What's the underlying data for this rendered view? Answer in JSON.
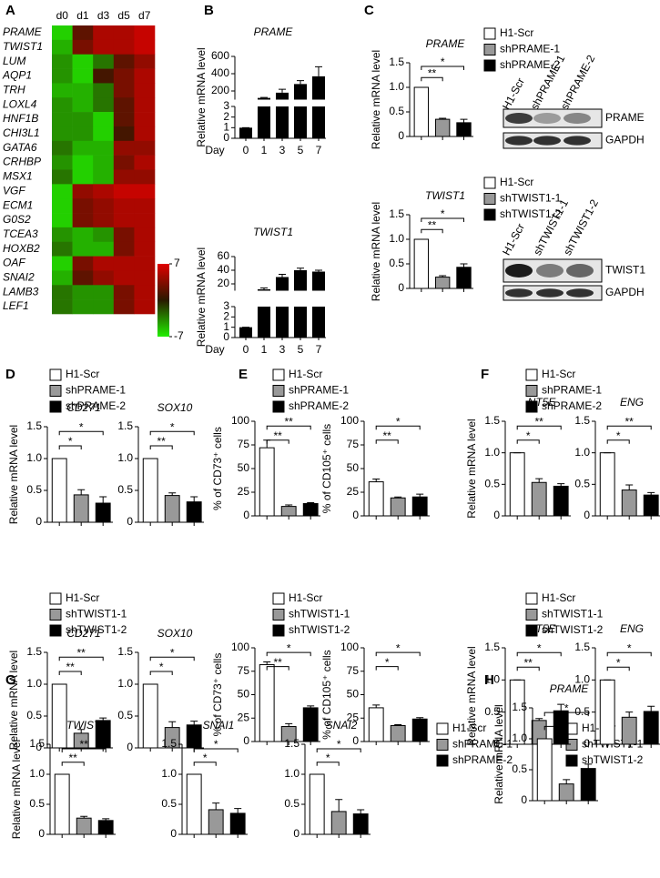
{
  "panel_labels": [
    "A",
    "B",
    "C",
    "D",
    "E",
    "F",
    "G",
    "H"
  ],
  "legends": [
    {
      "names": [
        "H1-Scr",
        "shPRAME-1",
        "shPRAME-2"
      ],
      "colors": [
        "#ffffff",
        "#999999",
        "#000000"
      ]
    },
    {
      "names": [
        "H1-Scr",
        "shTWIST1-1",
        "shTWIST1-2"
      ],
      "colors": [
        "#ffffff",
        "#999999",
        "#000000"
      ]
    },
    {
      "names": [
        "H1-Scr",
        "shPRAME-1",
        "shPRAME-2"
      ],
      "colors": [
        "#ffffff",
        "#999999",
        "#000000"
      ]
    },
    {
      "names": [
        "H1-Scr",
        "shTWIST1-1",
        "shTWIST1-2"
      ],
      "colors": [
        "#ffffff",
        "#999999",
        "#000000"
      ]
    },
    {
      "names": [
        "H1-Scr",
        "shPRAME-1",
        "shPRAME-2"
      ],
      "colors": [
        "#ffffff",
        "#999999",
        "#000000"
      ]
    },
    {
      "names": [
        "H1-Scr",
        "shTWIST1-1",
        "shTWIST1-2"
      ],
      "colors": [
        "#ffffff",
        "#999999",
        "#000000"
      ]
    },
    {
      "names": [
        "H1-Scr",
        "shPRAME-1",
        "shPRAME-2"
      ],
      "colors": [
        "#ffffff",
        "#999999",
        "#000000"
      ]
    },
    {
      "names": [
        "H1-Scr",
        "shTWIST1-1",
        "shTWIST1-2"
      ],
      "colors": [
        "#ffffff",
        "#999999",
        "#000000"
      ]
    },
    {
      "names": [
        "H1-Scr",
        "shPRAME-1",
        "shPRAME-2"
      ],
      "colors": [
        "#ffffff",
        "#999999",
        "#000000"
      ]
    },
    {
      "names": [
        "H1-Scr",
        "shTWIST1-1",
        "shTWIST1-2"
      ],
      "colors": [
        "#ffffff",
        "#999999",
        "#000000"
      ]
    }
  ],
  "blots": [
    {
      "columns": [
        "H1-Scr",
        "shPRAME-1",
        "shPRAME-2"
      ],
      "bands": [
        "PRAME",
        "GAPDH"
      ]
    },
    {
      "columns": [
        "H1-Scr",
        "shTWIST1-1",
        "shTWIST1-2"
      ],
      "bands": [
        "TWIST1",
        "GAPDH"
      ]
    }
  ],
  "chart_data": [
    {
      "type": "heatmap",
      "columns": [
        "d0",
        "d1",
        "d3",
        "d5",
        "d7"
      ],
      "rows": [
        "PRAME",
        "TWIST1",
        "LUM",
        "AQP1",
        "TRH",
        "LOXL4",
        "HNF1B",
        "CHI3L1",
        "GATA6",
        "CRHBP",
        "MSX1",
        "VGF",
        "ECM1",
        "G0S2",
        "TCEA3",
        "HOXB2",
        "OAF",
        "SNAI2",
        "LAMB3",
        "LEF1"
      ],
      "values": [
        [
          -6,
          2,
          5,
          5,
          6
        ],
        [
          -5,
          3,
          5,
          5,
          6
        ],
        [
          -4,
          -6,
          -3,
          2,
          4
        ],
        [
          -4,
          -6,
          1,
          3,
          5
        ],
        [
          -5,
          -5,
          -3,
          3,
          5
        ],
        [
          -4,
          -5,
          -3,
          2,
          5
        ],
        [
          -4,
          -4,
          -6,
          2,
          5
        ],
        [
          -4,
          -4,
          -6,
          1,
          5
        ],
        [
          -3,
          -5,
          -5,
          4,
          4
        ],
        [
          -4,
          -6,
          -5,
          3,
          5
        ],
        [
          -3,
          -6,
          -5,
          4,
          4
        ],
        [
          -6,
          4,
          5,
          6,
          6
        ],
        [
          -6,
          3,
          4,
          5,
          5
        ],
        [
          -6,
          3,
          4,
          5,
          5
        ],
        [
          -4,
          -5,
          -4,
          3,
          5
        ],
        [
          -3,
          -5,
          -5,
          3,
          5
        ],
        [
          -6,
          3,
          5,
          5,
          5
        ],
        [
          -5,
          2,
          4,
          5,
          5
        ],
        [
          -3,
          -4,
          -4,
          3,
          5
        ],
        [
          -3,
          -4,
          -4,
          3,
          5
        ]
      ],
      "clim": [
        -7,
        7
      ],
      "cticks": [
        7,
        -7
      ],
      "colormap": [
        "#22ee00",
        "#2a1a00",
        "#e00000"
      ]
    },
    {
      "type": "broken_bar",
      "title": "PRAME",
      "y_label": "Relative mRNA level",
      "x_label": "Day",
      "categories": [
        "0",
        "1",
        "3",
        "5",
        "7"
      ],
      "values": [
        1,
        120,
        180,
        280,
        370
      ],
      "errors": [
        0,
        5,
        40,
        40,
        110
      ],
      "color": "#000000",
      "ylim_lower": [
        0,
        3
      ],
      "yticks_lower": [
        0,
        1,
        2,
        3
      ],
      "ylim_upper": [
        100,
        600
      ],
      "yticks_upper": [
        200,
        400,
        600
      ]
    },
    {
      "type": "broken_bar",
      "title": "TWIST1",
      "y_label": "Relative mRNA level",
      "x_label": "Day",
      "categories": [
        "0",
        "1",
        "3",
        "5",
        "7"
      ],
      "values": [
        1,
        12,
        30,
        40,
        38
      ],
      "errors": [
        0,
        2,
        4,
        3,
        2
      ],
      "color": "#000000",
      "ylim_lower": [
        0,
        3
      ],
      "yticks_lower": [
        0,
        1,
        2,
        3
      ],
      "ylim_upper": [
        10,
        60
      ],
      "yticks_upper": [
        20,
        40,
        60
      ]
    },
    {
      "type": "bar",
      "title": "PRAME",
      "y_label": "Relative mRNA level",
      "categories": [
        null,
        null,
        null
      ],
      "values": [
        1,
        0.35,
        0.28
      ],
      "errors": [
        0,
        0.02,
        0.07
      ],
      "colors": [
        "#ffffff",
        "#999999",
        "#000000"
      ],
      "ylim": [
        0,
        1.5
      ],
      "yticks": [
        0,
        0.5,
        {
          "value": 1,
          "label": "1.0"
        },
        1.5
      ],
      "significance": [
        "**",
        "*"
      ]
    },
    {
      "type": "bar",
      "title": "TWIST1",
      "y_label": "Relative mRNA level",
      "categories": [
        null,
        null,
        null
      ],
      "values": [
        1,
        0.23,
        0.43
      ],
      "errors": [
        0,
        0.03,
        0.07
      ],
      "colors": [
        "#ffffff",
        "#999999",
        "#000000"
      ],
      "ylim": [
        0,
        1.5
      ],
      "yticks": [
        0,
        0.5,
        {
          "value": 1,
          "label": "1.0"
        },
        1.5
      ],
      "significance": [
        "**",
        "*"
      ]
    },
    {
      "type": "bar",
      "title": "CD271",
      "y_label": "Relative mRNA level",
      "categories": [
        null,
        null,
        null
      ],
      "values": [
        1,
        0.43,
        0.3
      ],
      "errors": [
        0,
        0.08,
        0.1
      ],
      "colors": [
        "#ffffff",
        "#999999",
        "#000000"
      ],
      "ylim": [
        0,
        1.5
      ],
      "yticks": [
        0,
        0.5,
        {
          "value": 1,
          "label": "1.0"
        },
        1.5
      ],
      "significance": [
        "*",
        "*"
      ]
    },
    {
      "type": "bar",
      "title": "SOX10",
      "categories": [
        null,
        null,
        null
      ],
      "values": [
        1,
        0.42,
        0.32
      ],
      "errors": [
        0,
        0.04,
        0.08
      ],
      "colors": [
        "#ffffff",
        "#999999",
        "#000000"
      ],
      "ylim": [
        0,
        1.5
      ],
      "yticks": [
        0,
        0.5,
        {
          "value": 1,
          "label": "1.0"
        },
        1.5
      ],
      "significance": [
        "**",
        "*"
      ]
    },
    {
      "type": "bar",
      "title": "CD271",
      "y_label": "Relative mRNA level",
      "categories": [
        null,
        null,
        null
      ],
      "values": [
        1,
        0.23,
        0.43
      ],
      "errors": [
        0,
        0.06,
        0.04
      ],
      "colors": [
        "#ffffff",
        "#999999",
        "#000000"
      ],
      "ylim": [
        0,
        1.5
      ],
      "yticks": [
        0,
        0.5,
        {
          "value": 1,
          "label": "1.0"
        },
        1.5
      ],
      "significance": [
        "**",
        "**"
      ]
    },
    {
      "type": "bar",
      "title": "SOX10",
      "categories": [
        null,
        null,
        null
      ],
      "values": [
        1,
        0.32,
        0.36
      ],
      "errors": [
        0,
        0.09,
        0.06
      ],
      "colors": [
        "#ffffff",
        "#999999",
        "#000000"
      ],
      "ylim": [
        0,
        1.5
      ],
      "yticks": [
        0,
        0.5,
        {
          "value": 1,
          "label": "1.0"
        },
        1.5
      ],
      "significance": [
        "*",
        "*"
      ]
    },
    {
      "type": "bar",
      "y_label": "% of CD73⁺ cells",
      "categories": [
        null,
        null,
        null
      ],
      "values": [
        72,
        10,
        13
      ],
      "errors": [
        8,
        1.5,
        1
      ],
      "colors": [
        "#ffffff",
        "#999999",
        "#000000"
      ],
      "ylim": [
        0,
        100
      ],
      "yticks": [
        0,
        25,
        50,
        75,
        100
      ],
      "significance": [
        "**",
        "**"
      ]
    },
    {
      "type": "bar",
      "y_label": "% of CD105⁺ cells",
      "categories": [
        null,
        null,
        null
      ],
      "values": [
        36,
        19,
        20
      ],
      "errors": [
        3,
        1,
        3
      ],
      "colors": [
        "#ffffff",
        "#999999",
        "#000000"
      ],
      "ylim": [
        0,
        100
      ],
      "yticks": [
        0,
        25,
        50,
        75,
        100
      ],
      "significance": [
        "**",
        "*"
      ]
    },
    {
      "type": "bar",
      "y_label": "% of CD73⁺ cells",
      "categories": [
        null,
        null,
        null
      ],
      "values": [
        82,
        16,
        36
      ],
      "errors": [
        3,
        3,
        2
      ],
      "colors": [
        "#ffffff",
        "#999999",
        "#000000"
      ],
      "ylim": [
        0,
        100
      ],
      "yticks": [
        0,
        25,
        50,
        75,
        100
      ],
      "significance": [
        "**",
        "*"
      ]
    },
    {
      "type": "bar",
      "y_label": "% of CD105⁺ cells",
      "categories": [
        null,
        null,
        null
      ],
      "values": [
        36,
        17,
        24
      ],
      "errors": [
        3,
        1,
        1.5
      ],
      "colors": [
        "#ffffff",
        "#999999",
        "#000000"
      ],
      "ylim": [
        0,
        100
      ],
      "yticks": [
        0,
        25,
        50,
        75,
        100
      ],
      "significance": [
        "*",
        "*"
      ]
    },
    {
      "type": "bar",
      "title": "NT5E",
      "y_label": "Relative mRNA level",
      "categories": [
        null,
        null,
        null
      ],
      "values": [
        1,
        0.53,
        0.47
      ],
      "errors": [
        0,
        0.06,
        0.04
      ],
      "colors": [
        "#ffffff",
        "#999999",
        "#000000"
      ],
      "ylim": [
        0,
        1.5
      ],
      "yticks": [
        0,
        0.5,
        {
          "value": 1,
          "label": "1.0"
        },
        1.5
      ],
      "significance": [
        "*",
        "**"
      ]
    },
    {
      "type": "bar",
      "title": "ENG",
      "categories": [
        null,
        null,
        null
      ],
      "values": [
        1,
        0.41,
        0.33
      ],
      "errors": [
        0,
        0.08,
        0.04
      ],
      "colors": [
        "#ffffff",
        "#999999",
        "#000000"
      ],
      "ylim": [
        0,
        1.5
      ],
      "yticks": [
        0,
        0.5,
        {
          "value": 1,
          "label": "1.0"
        },
        1.5
      ],
      "significance": [
        "*",
        "**"
      ]
    },
    {
      "type": "bar",
      "title": "NT5E",
      "y_label": "Relative mRNA level",
      "categories": [
        null,
        null,
        null
      ],
      "values": [
        1,
        0.37,
        0.52
      ],
      "errors": [
        0,
        0.03,
        0.1
      ],
      "colors": [
        "#ffffff",
        "#999999",
        "#000000"
      ],
      "ylim": [
        0,
        1.5
      ],
      "yticks": [
        0,
        0.5,
        {
          "value": 1,
          "label": "1.0"
        },
        1.5
      ],
      "significance": [
        "**",
        "*"
      ]
    },
    {
      "type": "bar",
      "title": "ENG",
      "categories": [
        null,
        null,
        null
      ],
      "values": [
        1,
        0.42,
        0.51
      ],
      "errors": [
        0,
        0.08,
        0.08
      ],
      "colors": [
        "#ffffff",
        "#999999",
        "#000000"
      ],
      "ylim": [
        0,
        1.5
      ],
      "yticks": [
        0,
        0.5,
        {
          "value": 1,
          "label": "1.0"
        },
        1.5
      ],
      "significance": [
        "*",
        "*"
      ]
    },
    {
      "type": "bar",
      "title": "TWIST1",
      "y_label": "Relative mRNA level",
      "categories": [
        null,
        null,
        null
      ],
      "values": [
        1,
        0.27,
        0.23
      ],
      "errors": [
        0,
        0.03,
        0.03
      ],
      "colors": [
        "#ffffff",
        "#999999",
        "#000000"
      ],
      "ylim": [
        0,
        1.5
      ],
      "yticks": [
        0,
        0.5,
        {
          "value": 1,
          "label": "1.0"
        },
        1.5
      ],
      "significance": [
        "**",
        "**"
      ]
    },
    {
      "type": "bar",
      "title": "SNAI1",
      "categories": [
        null,
        null,
        null
      ],
      "values": [
        1,
        0.41,
        0.35
      ],
      "errors": [
        0,
        0.11,
        0.08
      ],
      "colors": [
        "#ffffff",
        "#999999",
        "#000000"
      ],
      "ylim": [
        0,
        1.5
      ],
      "yticks": [
        0,
        0.5,
        {
          "value": 1,
          "label": "1.0"
        },
        1.5
      ],
      "significance": [
        "*",
        "*"
      ]
    },
    {
      "type": "bar",
      "title": "SNAI2",
      "categories": [
        null,
        null,
        null
      ],
      "values": [
        1,
        0.38,
        0.34
      ],
      "errors": [
        0,
        0.2,
        0.07
      ],
      "colors": [
        "#ffffff",
        "#999999",
        "#000000"
      ],
      "ylim": [
        0,
        1.5
      ],
      "yticks": [
        0,
        0.5,
        {
          "value": 1,
          "label": "1.0"
        },
        1.5
      ],
      "significance": [
        "*",
        "*"
      ]
    },
    {
      "type": "bar",
      "title": "PRAME",
      "y_label": "Relative mRNA level",
      "categories": [
        null,
        null,
        null
      ],
      "values": [
        1,
        0.27,
        0.52
      ],
      "errors": [
        0,
        0.07,
        0.07
      ],
      "colors": [
        "#ffffff",
        "#999999",
        "#000000"
      ],
      "ylim": [
        0,
        1.5
      ],
      "yticks": [
        0,
        0.5,
        {
          "value": 1,
          "label": "1.0"
        },
        1.5
      ],
      "significance": [
        "*",
        "*"
      ]
    }
  ]
}
